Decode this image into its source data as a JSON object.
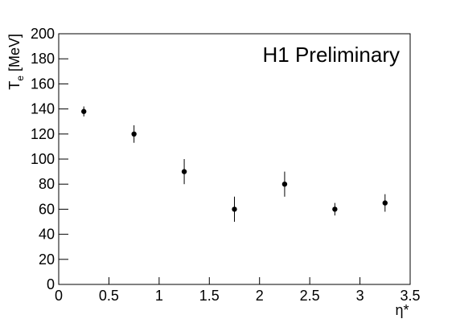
{
  "chart_data": {
    "type": "scatter",
    "annotation": "H1 Preliminary",
    "xlabel": "η*",
    "ylabel": [
      "T",
      "e",
      "[MeV]"
    ],
    "x": [
      0.25,
      0.75,
      1.25,
      1.75,
      2.25,
      2.75,
      3.25
    ],
    "values": [
      138,
      120,
      90,
      60,
      80,
      60,
      65
    ],
    "errors": [
      4,
      7,
      10,
      10,
      10,
      5,
      7
    ],
    "color": "#000000",
    "xlim": [
      0,
      3.5
    ],
    "xticks": [
      0,
      0.5,
      1,
      1.5,
      2,
      2.5,
      3,
      3.5
    ],
    "ylim": [
      0,
      200
    ],
    "yticks": [
      0,
      20,
      40,
      60,
      80,
      100,
      120,
      140,
      160,
      180,
      200
    ],
    "grid": false
  }
}
